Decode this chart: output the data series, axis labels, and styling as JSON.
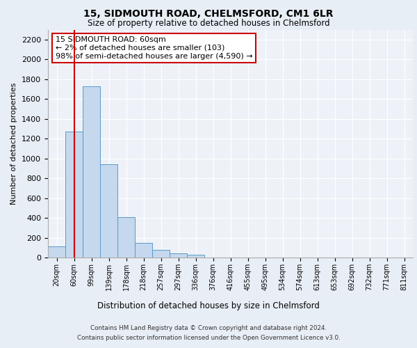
{
  "title": "15, SIDMOUTH ROAD, CHELMSFORD, CM1 6LR",
  "subtitle": "Size of property relative to detached houses in Chelmsford",
  "xlabel": "Distribution of detached houses by size in Chelmsford",
  "ylabel": "Number of detached properties",
  "footer_line1": "Contains HM Land Registry data © Crown copyright and database right 2024.",
  "footer_line2": "Contains public sector information licensed under the Open Government Licence v3.0.",
  "bar_labels": [
    "20sqm",
    "60sqm",
    "99sqm",
    "139sqm",
    "178sqm",
    "218sqm",
    "257sqm",
    "297sqm",
    "336sqm",
    "376sqm",
    "416sqm",
    "455sqm",
    "495sqm",
    "534sqm",
    "574sqm",
    "613sqm",
    "653sqm",
    "692sqm",
    "732sqm",
    "771sqm",
    "811sqm"
  ],
  "bar_values": [
    110,
    1270,
    1730,
    940,
    410,
    150,
    80,
    45,
    25,
    0,
    0,
    0,
    0,
    0,
    0,
    0,
    0,
    0,
    0,
    0,
    0
  ],
  "bar_color": "#c5d8ed",
  "bar_edge_color": "#5a9ac8",
  "highlight_bar_index": 1,
  "highlight_line_color": "#cc0000",
  "ylim": [
    0,
    2300
  ],
  "yticks": [
    0,
    200,
    400,
    600,
    800,
    1000,
    1200,
    1400,
    1600,
    1800,
    2000,
    2200
  ],
  "annotation_text": "15 SIDMOUTH ROAD: 60sqm\n← 2% of detached houses are smaller (103)\n98% of semi-detached houses are larger (4,590) →",
  "annotation_box_color": "#cc0000",
  "bg_color": "#e8eef5",
  "plot_bg_color": "#eef2f8"
}
